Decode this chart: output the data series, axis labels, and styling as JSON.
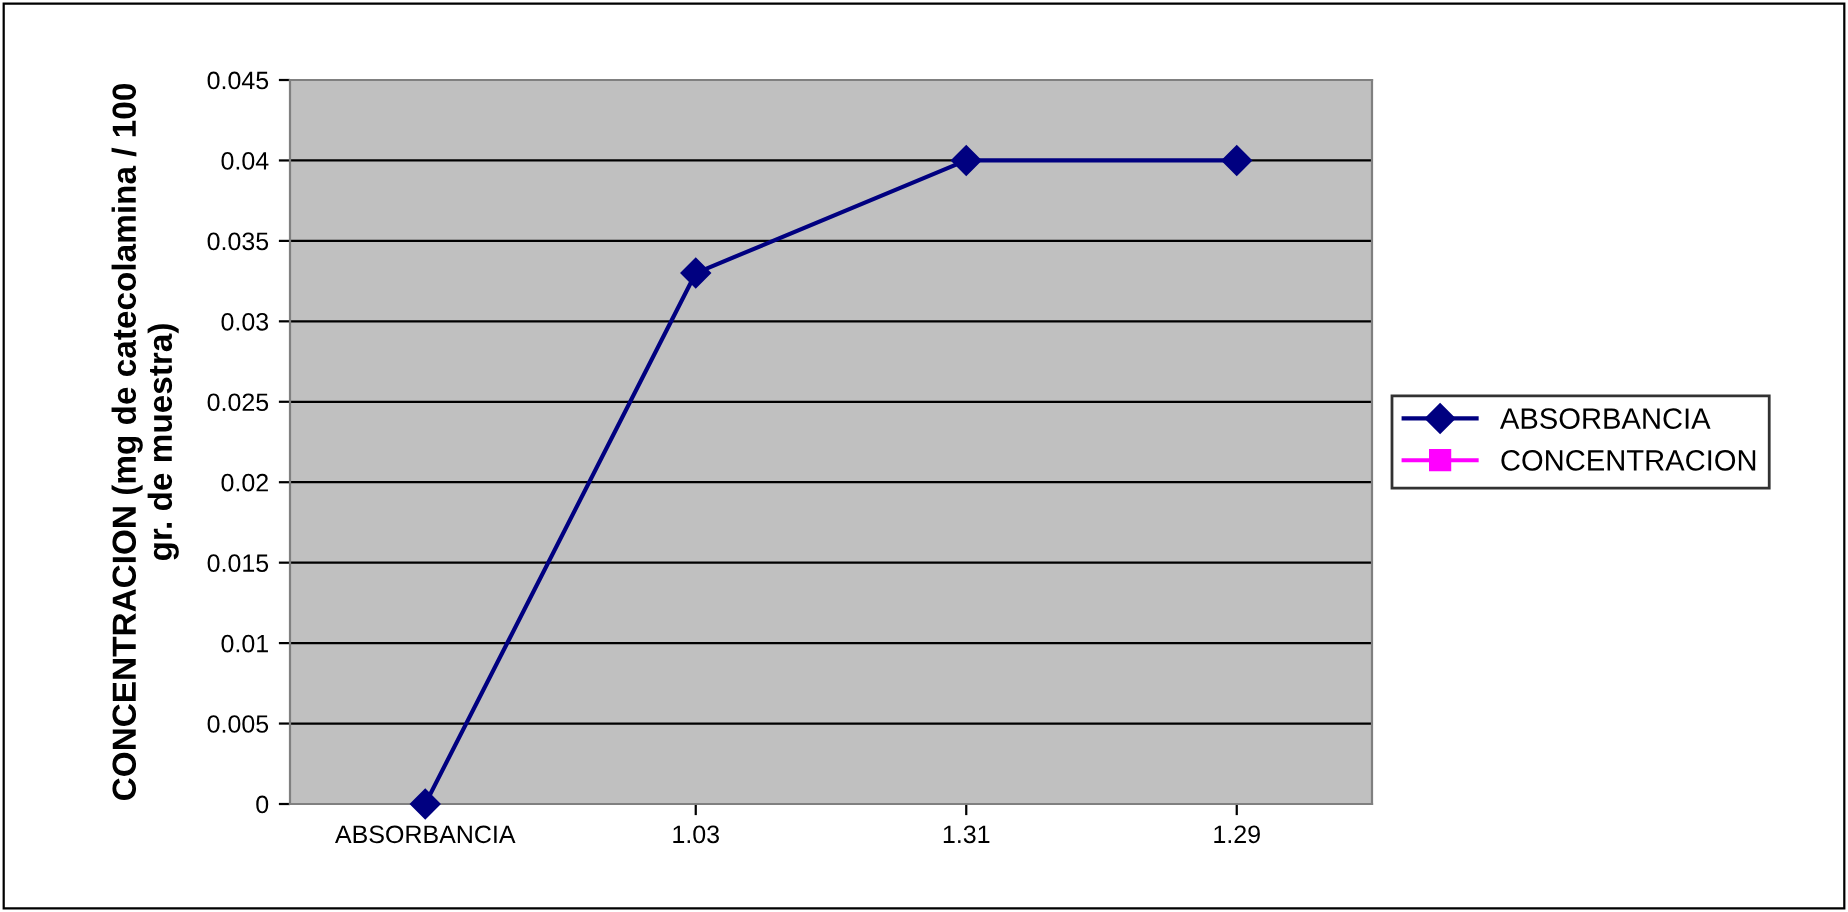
{
  "chart_data": {
    "type": "line",
    "ylabel": "CONCENTRACION (mg de catecolamina / 100\ngr. de muestra)",
    "categories": [
      "ABSORBANCIA",
      "1.03",
      "1.31",
      "1.29"
    ],
    "series": [
      {
        "name": "ABSORBANCIA",
        "color": "#000080",
        "values": [
          0,
          0.033,
          0.04,
          0.04
        ],
        "marker": "diamond"
      },
      {
        "name": "CONCENTRACION",
        "color": "#ff00ff",
        "values": [
          null,
          null,
          null,
          null
        ],
        "marker": "square"
      }
    ],
    "ylim": [
      0,
      0.045
    ],
    "yticks": [
      0,
      0.005,
      0.01,
      0.015,
      0.02,
      0.025,
      0.03,
      0.035,
      0.04,
      0.045
    ],
    "grid": "y",
    "legend": "right",
    "line_style": "solid"
  }
}
